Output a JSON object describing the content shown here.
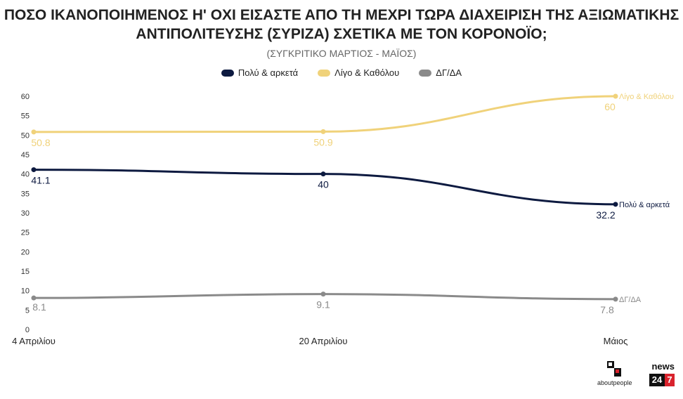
{
  "chart_data": {
    "type": "line",
    "title_lines": [
      "ΠΟΣΟ ΙΚΑΝΟΠΟΙΗΜΕΝΟΣ Η' ΟΧΙ ΕΙΣΑΣΤΕ ΑΠΟ ΤΗ ΜΕΧΡΙ ΤΩΡΑ ΔΙΑΧΕΙΡΙΣΗ ΤΗΣ ΑΞΙΩΜΑΤΙΚΗΣ",
      "ΑΝΤΙΠΟΛΙΤΕΥΣΗΣ (ΣΥΡΙΖΑ) ΣΧΕΤΙΚΑ ΜΕ ΤΟΝ ΚΟΡΟΝΟΪΟ;"
    ],
    "subtitle": "(ΣΥΓΚΡΙΤΙΚΟ ΜΑΡΤΙΟΣ - ΜΑΪΟΣ)",
    "categories": [
      "4 Απριλίου",
      "20 Απριλίου",
      "Μάιος"
    ],
    "y_ticks": [
      0,
      5,
      10,
      15,
      20,
      25,
      30,
      35,
      40,
      45,
      50,
      55,
      60
    ],
    "ylim": [
      0,
      60
    ],
    "grid": false,
    "legend_position": "top-center",
    "series": [
      {
        "name": "Πολύ & αρκετά",
        "values": [
          41.1,
          40,
          32.2
        ],
        "color": "#0d1a40",
        "value_labels": [
          "41.1",
          "40",
          "32.2"
        ]
      },
      {
        "name": "Λίγο & Καθόλου",
        "values": [
          50.8,
          50.9,
          60
        ],
        "color": "#f0d27a",
        "value_labels": [
          "50.8",
          "50.9",
          "60"
        ]
      },
      {
        "name": "ΔΓ/ΔΑ",
        "values": [
          8.1,
          9.1,
          7.8
        ],
        "color": "#8a8a8a",
        "value_labels": [
          "8.1",
          "9.1",
          "7.8"
        ]
      }
    ]
  },
  "logos": {
    "left_text": "aboutpeople",
    "right_word": "news",
    "right_digits": [
      "24",
      "7"
    ],
    "right_digit_colors": [
      "#111111",
      "#d9232d"
    ]
  }
}
